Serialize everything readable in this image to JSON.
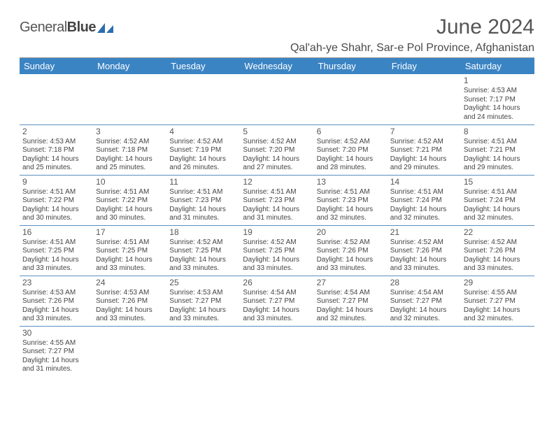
{
  "brand": {
    "word1": "General",
    "word2": "Blue"
  },
  "title": "June 2024",
  "location": "Qal'ah-ye Shahr, Sar-e Pol Province, Afghanistan",
  "colors": {
    "header_bg": "#3b84c4",
    "header_text": "#ffffff",
    "border": "#5a8fbf",
    "text": "#444444",
    "title_text": "#555555"
  },
  "day_headers": [
    "Sunday",
    "Monday",
    "Tuesday",
    "Wednesday",
    "Thursday",
    "Friday",
    "Saturday"
  ],
  "weeks": [
    [
      null,
      null,
      null,
      null,
      null,
      null,
      {
        "d": "1",
        "sr": "4:53 AM",
        "ss": "7:17 PM",
        "dh": "14",
        "dm": "24"
      }
    ],
    [
      {
        "d": "2",
        "sr": "4:53 AM",
        "ss": "7:18 PM",
        "dh": "14",
        "dm": "25"
      },
      {
        "d": "3",
        "sr": "4:52 AM",
        "ss": "7:18 PM",
        "dh": "14",
        "dm": "25"
      },
      {
        "d": "4",
        "sr": "4:52 AM",
        "ss": "7:19 PM",
        "dh": "14",
        "dm": "26"
      },
      {
        "d": "5",
        "sr": "4:52 AM",
        "ss": "7:20 PM",
        "dh": "14",
        "dm": "27"
      },
      {
        "d": "6",
        "sr": "4:52 AM",
        "ss": "7:20 PM",
        "dh": "14",
        "dm": "28"
      },
      {
        "d": "7",
        "sr": "4:52 AM",
        "ss": "7:21 PM",
        "dh": "14",
        "dm": "29"
      },
      {
        "d": "8",
        "sr": "4:51 AM",
        "ss": "7:21 PM",
        "dh": "14",
        "dm": "29"
      }
    ],
    [
      {
        "d": "9",
        "sr": "4:51 AM",
        "ss": "7:22 PM",
        "dh": "14",
        "dm": "30"
      },
      {
        "d": "10",
        "sr": "4:51 AM",
        "ss": "7:22 PM",
        "dh": "14",
        "dm": "30"
      },
      {
        "d": "11",
        "sr": "4:51 AM",
        "ss": "7:23 PM",
        "dh": "14",
        "dm": "31"
      },
      {
        "d": "12",
        "sr": "4:51 AM",
        "ss": "7:23 PM",
        "dh": "14",
        "dm": "31"
      },
      {
        "d": "13",
        "sr": "4:51 AM",
        "ss": "7:23 PM",
        "dh": "14",
        "dm": "32"
      },
      {
        "d": "14",
        "sr": "4:51 AM",
        "ss": "7:24 PM",
        "dh": "14",
        "dm": "32"
      },
      {
        "d": "15",
        "sr": "4:51 AM",
        "ss": "7:24 PM",
        "dh": "14",
        "dm": "32"
      }
    ],
    [
      {
        "d": "16",
        "sr": "4:51 AM",
        "ss": "7:25 PM",
        "dh": "14",
        "dm": "33"
      },
      {
        "d": "17",
        "sr": "4:51 AM",
        "ss": "7:25 PM",
        "dh": "14",
        "dm": "33"
      },
      {
        "d": "18",
        "sr": "4:52 AM",
        "ss": "7:25 PM",
        "dh": "14",
        "dm": "33"
      },
      {
        "d": "19",
        "sr": "4:52 AM",
        "ss": "7:25 PM",
        "dh": "14",
        "dm": "33"
      },
      {
        "d": "20",
        "sr": "4:52 AM",
        "ss": "7:26 PM",
        "dh": "14",
        "dm": "33"
      },
      {
        "d": "21",
        "sr": "4:52 AM",
        "ss": "7:26 PM",
        "dh": "14",
        "dm": "33"
      },
      {
        "d": "22",
        "sr": "4:52 AM",
        "ss": "7:26 PM",
        "dh": "14",
        "dm": "33"
      }
    ],
    [
      {
        "d": "23",
        "sr": "4:53 AM",
        "ss": "7:26 PM",
        "dh": "14",
        "dm": "33"
      },
      {
        "d": "24",
        "sr": "4:53 AM",
        "ss": "7:26 PM",
        "dh": "14",
        "dm": "33"
      },
      {
        "d": "25",
        "sr": "4:53 AM",
        "ss": "7:27 PM",
        "dh": "14",
        "dm": "33"
      },
      {
        "d": "26",
        "sr": "4:54 AM",
        "ss": "7:27 PM",
        "dh": "14",
        "dm": "33"
      },
      {
        "d": "27",
        "sr": "4:54 AM",
        "ss": "7:27 PM",
        "dh": "14",
        "dm": "32"
      },
      {
        "d": "28",
        "sr": "4:54 AM",
        "ss": "7:27 PM",
        "dh": "14",
        "dm": "32"
      },
      {
        "d": "29",
        "sr": "4:55 AM",
        "ss": "7:27 PM",
        "dh": "14",
        "dm": "32"
      }
    ],
    [
      {
        "d": "30",
        "sr": "4:55 AM",
        "ss": "7:27 PM",
        "dh": "14",
        "dm": "31"
      },
      null,
      null,
      null,
      null,
      null,
      null
    ]
  ],
  "labels": {
    "sunrise_prefix": "Sunrise: ",
    "sunset_prefix": "Sunset: ",
    "daylight_prefix": "Daylight: ",
    "hours_word": " hours",
    "and_word": "and ",
    "minutes_word": " minutes."
  }
}
